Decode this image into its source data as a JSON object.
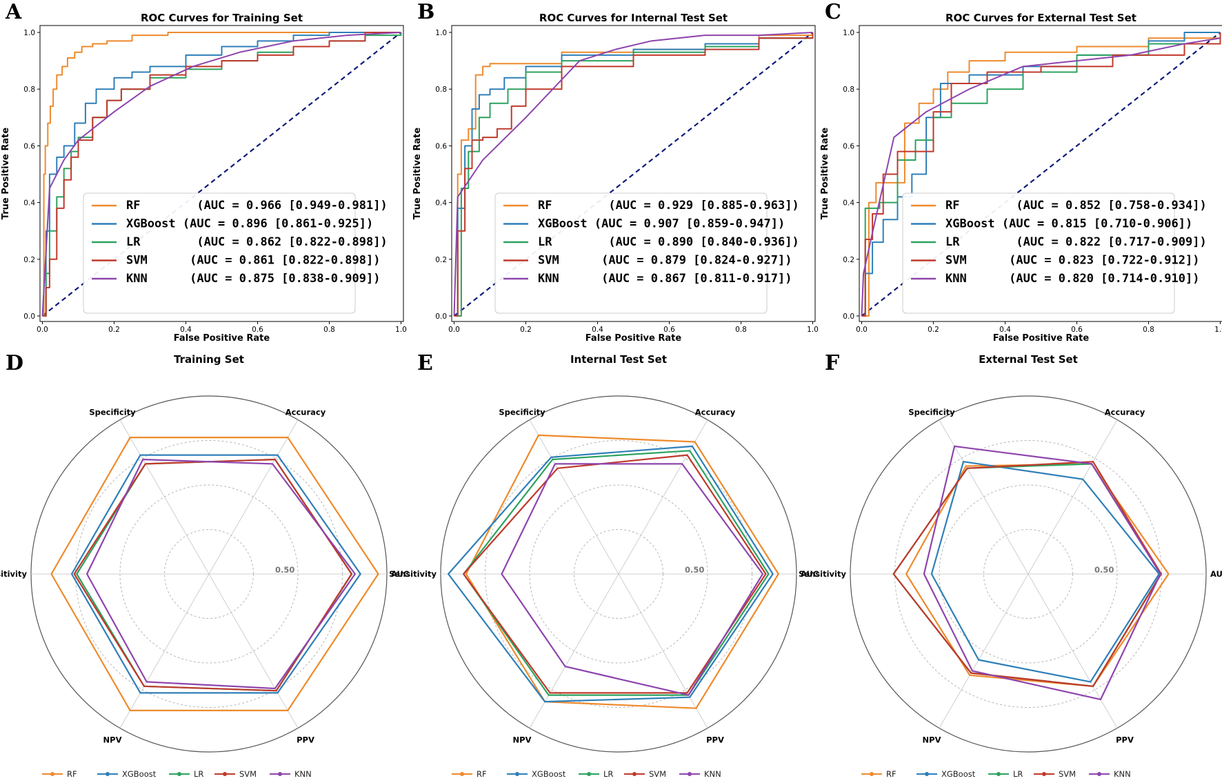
{
  "colors": {
    "RF": "#ee8a2c",
    "XGBoost": "#2e7fb8",
    "LR": "#2ca25f",
    "SVM": "#c0392b",
    "KNN": "#8e44ad",
    "diagonal": "#0b1a7a"
  },
  "chart_data": [
    {
      "panel": "A",
      "type": "line",
      "title": "ROC Curves for Training Set",
      "xlabel": "False Positive Rate",
      "ylabel": "True Positive Rate",
      "xlim": [
        0,
        1
      ],
      "ylim": [
        0,
        1
      ],
      "ticks": [
        "0.0",
        "0.2",
        "0.4",
        "0.6",
        "0.8",
        "1.0"
      ],
      "series": [
        {
          "name": "RF",
          "legend": "RF        (AUC = 0.966 [0.949-0.981])",
          "x": [
            0,
            0.004,
            0.008,
            0.015,
            0.022,
            0.03,
            0.04,
            0.055,
            0.07,
            0.09,
            0.11,
            0.14,
            0.18,
            0.25,
            0.35,
            0.5,
            0.7,
            1.0
          ],
          "y": [
            0,
            0.5,
            0.6,
            0.68,
            0.74,
            0.8,
            0.85,
            0.88,
            0.91,
            0.93,
            0.95,
            0.96,
            0.97,
            0.99,
            1.0,
            1.0,
            1.0,
            1.0
          ]
        },
        {
          "name": "XGBoost",
          "legend": "XGBoost (AUC = 0.896 [0.861-0.925])",
          "x": [
            0,
            0.01,
            0.02,
            0.04,
            0.06,
            0.09,
            0.12,
            0.15,
            0.2,
            0.25,
            0.3,
            0.4,
            0.5,
            0.6,
            0.7,
            0.8,
            0.9,
            1.0
          ],
          "y": [
            0,
            0.3,
            0.5,
            0.56,
            0.6,
            0.68,
            0.75,
            0.8,
            0.84,
            0.86,
            0.88,
            0.92,
            0.95,
            0.97,
            0.99,
            1.0,
            1.0,
            1.0
          ]
        },
        {
          "name": "LR",
          "legend": "LR        (AUC = 0.862 [0.822-0.898])",
          "x": [
            0,
            0.01,
            0.02,
            0.04,
            0.06,
            0.08,
            0.1,
            0.14,
            0.18,
            0.22,
            0.3,
            0.4,
            0.5,
            0.6,
            0.7,
            0.8,
            0.9,
            1.0
          ],
          "y": [
            0,
            0.15,
            0.3,
            0.42,
            0.52,
            0.58,
            0.63,
            0.7,
            0.76,
            0.8,
            0.84,
            0.87,
            0.9,
            0.93,
            0.95,
            0.97,
            0.99,
            1.0
          ]
        },
        {
          "name": "SVM",
          "legend": "SVM      (AUC = 0.861 [0.822-0.898])",
          "x": [
            0,
            0.01,
            0.02,
            0.04,
            0.06,
            0.08,
            0.1,
            0.14,
            0.18,
            0.22,
            0.3,
            0.4,
            0.5,
            0.6,
            0.7,
            0.8,
            0.9,
            1.0
          ],
          "y": [
            0,
            0.1,
            0.2,
            0.38,
            0.48,
            0.56,
            0.62,
            0.7,
            0.76,
            0.8,
            0.85,
            0.88,
            0.9,
            0.92,
            0.95,
            0.97,
            1.0,
            1.0
          ]
        },
        {
          "name": "KNN",
          "legend": "KNN      (AUC = 0.875 [0.838-0.909])",
          "x": [
            0,
            0.02,
            0.06,
            0.1,
            0.2,
            0.3,
            0.42,
            0.55,
            0.7,
            0.85,
            1.0
          ],
          "y": [
            0,
            0.45,
            0.55,
            0.62,
            0.72,
            0.81,
            0.88,
            0.93,
            0.97,
            0.99,
            1.0
          ]
        }
      ]
    },
    {
      "panel": "B",
      "type": "line",
      "title": "ROC Curves for Internal Test Set",
      "xlabel": "False Positive Rate",
      "ylabel": "True Positive Rate",
      "xlim": [
        0,
        1
      ],
      "ylim": [
        0,
        1
      ],
      "ticks": [
        "0.0",
        "0.2",
        "0.4",
        "0.6",
        "0.8",
        "1.0"
      ],
      "series": [
        {
          "name": "RF",
          "legend": "RF        (AUC = 0.929 [0.885-0.963])",
          "x": [
            0,
            0.01,
            0.02,
            0.04,
            0.06,
            0.08,
            0.1,
            0.25,
            0.3,
            0.5,
            0.7,
            0.85,
            1.0
          ],
          "y": [
            0,
            0.5,
            0.62,
            0.66,
            0.85,
            0.88,
            0.89,
            0.89,
            0.93,
            0.94,
            0.95,
            0.99,
            1.0
          ]
        },
        {
          "name": "XGBoost",
          "legend": "XGBoost (AUC = 0.907 [0.859-0.947])",
          "x": [
            0,
            0.01,
            0.03,
            0.05,
            0.07,
            0.1,
            0.14,
            0.2,
            0.3,
            0.5,
            0.7,
            0.85,
            1.0
          ],
          "y": [
            0,
            0.38,
            0.6,
            0.73,
            0.78,
            0.8,
            0.84,
            0.88,
            0.92,
            0.94,
            0.96,
            0.98,
            1.0
          ]
        },
        {
          "name": "LR",
          "legend": "LR        (AUC = 0.890 [0.840-0.936])",
          "x": [
            0,
            0.02,
            0.04,
            0.07,
            0.1,
            0.15,
            0.2,
            0.3,
            0.5,
            0.7,
            0.85,
            1.0
          ],
          "y": [
            0,
            0.45,
            0.58,
            0.7,
            0.75,
            0.8,
            0.86,
            0.9,
            0.93,
            0.95,
            0.98,
            1.0
          ]
        },
        {
          "name": "SVM",
          "legend": "SVM      (AUC = 0.879 [0.824-0.927])",
          "x": [
            0,
            0.01,
            0.03,
            0.05,
            0.08,
            0.12,
            0.16,
            0.2,
            0.3,
            0.5,
            0.7,
            0.85,
            1.0
          ],
          "y": [
            0,
            0.3,
            0.52,
            0.62,
            0.63,
            0.66,
            0.74,
            0.8,
            0.88,
            0.92,
            0.94,
            0.98,
            1.0
          ]
        },
        {
          "name": "KNN",
          "legend": "KNN      (AUC = 0.867 [0.811-0.917])",
          "x": [
            0,
            0.01,
            0.08,
            0.2,
            0.35,
            0.45,
            0.55,
            0.7,
            0.85,
            1.0
          ],
          "y": [
            0,
            0.42,
            0.55,
            0.7,
            0.9,
            0.94,
            0.97,
            0.99,
            0.99,
            1.0
          ]
        }
      ]
    },
    {
      "panel": "C",
      "type": "line",
      "title": "ROC Curves for External Test Set",
      "xlabel": "False Positive Rate",
      "ylabel": "True Positive Rate",
      "xlim": [
        0,
        1
      ],
      "ylim": [
        0,
        1
      ],
      "ticks": [
        "0.0",
        "0.2",
        "0.4",
        "0.6",
        "0.8",
        "1.0"
      ],
      "series": [
        {
          "name": "RF",
          "legend": "RF        (AUC = 0.852 [0.758-0.934])",
          "x": [
            0,
            0.02,
            0.04,
            0.08,
            0.12,
            0.16,
            0.2,
            0.24,
            0.3,
            0.4,
            0.6,
            0.8,
            1.0
          ],
          "y": [
            0,
            0.4,
            0.47,
            0.47,
            0.68,
            0.75,
            0.8,
            0.86,
            0.9,
            0.93,
            0.95,
            0.98,
            1.0
          ]
        },
        {
          "name": "XGBoost",
          "legend": "XGBoost (AUC = 0.815 [0.710-0.906])",
          "x": [
            0,
            0.01,
            0.03,
            0.06,
            0.1,
            0.14,
            0.18,
            0.22,
            0.3,
            0.45,
            0.6,
            0.8,
            0.9,
            1.0
          ],
          "y": [
            0,
            0.15,
            0.26,
            0.34,
            0.42,
            0.5,
            0.7,
            0.82,
            0.85,
            0.88,
            0.92,
            0.97,
            1.0,
            1.0
          ]
        },
        {
          "name": "LR",
          "legend": "LR        (AUC = 0.822 [0.717-0.909])",
          "x": [
            0,
            0.01,
            0.05,
            0.1,
            0.15,
            0.2,
            0.25,
            0.35,
            0.45,
            0.6,
            0.8,
            1.0
          ],
          "y": [
            0,
            0.38,
            0.4,
            0.55,
            0.62,
            0.7,
            0.75,
            0.8,
            0.86,
            0.92,
            0.96,
            1.0
          ]
        },
        {
          "name": "SVM",
          "legend": "SVM      (AUC = 0.823 [0.722-0.912])",
          "x": [
            0,
            0.01,
            0.03,
            0.06,
            0.1,
            0.15,
            0.2,
            0.25,
            0.35,
            0.5,
            0.7,
            0.9,
            1.0
          ],
          "y": [
            0,
            0.27,
            0.36,
            0.5,
            0.58,
            0.58,
            0.72,
            0.82,
            0.86,
            0.88,
            0.92,
            0.96,
            1.0
          ]
        },
        {
          "name": "KNN",
          "legend": "KNN      (AUC = 0.820 [0.714-0.910])",
          "x": [
            0,
            0.005,
            0.04,
            0.09,
            0.18,
            0.3,
            0.45,
            0.6,
            0.75,
            0.9,
            1.0
          ],
          "y": [
            0,
            0.15,
            0.35,
            0.63,
            0.72,
            0.8,
            0.88,
            0.9,
            0.92,
            0.96,
            0.98
          ]
        }
      ]
    },
    {
      "panel": "D",
      "type": "radar",
      "title": "Training Set",
      "axes": [
        "AUC",
        "Accuracy",
        "Specificity",
        "Sensitivity",
        "NPV",
        "PPV"
      ],
      "ring_label": "0.50",
      "rmin": 0.3,
      "rmax": 1.0,
      "series": [
        {
          "name": "RF",
          "values": [
            0.966,
            0.92,
            0.92,
            0.92,
            0.92,
            0.92
          ]
        },
        {
          "name": "XGBoost",
          "values": [
            0.896,
            0.84,
            0.84,
            0.84,
            0.84,
            0.84
          ]
        },
        {
          "name": "LR",
          "values": [
            0.862,
            0.82,
            0.8,
            0.82,
            0.81,
            0.83
          ]
        },
        {
          "name": "SVM",
          "values": [
            0.861,
            0.82,
            0.8,
            0.83,
            0.81,
            0.83
          ]
        },
        {
          "name": "KNN",
          "values": [
            0.875,
            0.8,
            0.82,
            0.78,
            0.79,
            0.82
          ]
        }
      ]
    },
    {
      "panel": "E",
      "type": "radar",
      "title": "Internal Test Set",
      "axes": [
        "AUC",
        "Accuracy",
        "Specificity",
        "Sensitivity",
        "NPV",
        "PPV"
      ],
      "ring_label": "0.50",
      "rmin": 0.3,
      "rmax": 1.0,
      "series": [
        {
          "name": "RF",
          "values": [
            0.929,
            0.9,
            0.93,
            0.9,
            0.88,
            0.91
          ]
        },
        {
          "name": "XGBoost",
          "values": [
            0.907,
            0.88,
            0.83,
            0.97,
            0.88,
            0.86
          ]
        },
        {
          "name": "LR",
          "values": [
            0.89,
            0.86,
            0.82,
            0.91,
            0.85,
            0.85
          ]
        },
        {
          "name": "SVM",
          "values": [
            0.879,
            0.84,
            0.78,
            0.91,
            0.84,
            0.84
          ]
        },
        {
          "name": "KNN",
          "values": [
            0.867,
            0.8,
            0.8,
            0.76,
            0.72,
            0.85
          ]
        }
      ]
    },
    {
      "panel": "F",
      "type": "radar",
      "title": "External Test Set",
      "axes": [
        "AUC",
        "Accuracy",
        "Specificity",
        "Sensitivity",
        "NPV",
        "PPV"
      ],
      "ring_label": "0.50",
      "rmin": 0.3,
      "rmax": 1.0,
      "series": [
        {
          "name": "RF",
          "values": [
            0.852,
            0.8,
            0.79,
            0.78,
            0.76,
            0.81
          ]
        },
        {
          "name": "XGBoost",
          "values": [
            0.815,
            0.73,
            0.81,
            0.68,
            0.69,
            0.79
          ]
        },
        {
          "name": "LR",
          "values": [
            0.822,
            0.8,
            0.78,
            0.83,
            0.75,
            0.81
          ]
        },
        {
          "name": "SVM",
          "values": [
            0.823,
            0.81,
            0.78,
            0.83,
            0.75,
            0.81
          ]
        },
        {
          "name": "KNN",
          "values": [
            0.82,
            0.8,
            0.88,
            0.71,
            0.74,
            0.87
          ]
        }
      ]
    }
  ],
  "legend_names": [
    "RF",
    "XGBoost",
    "LR",
    "SVM",
    "KNN"
  ]
}
